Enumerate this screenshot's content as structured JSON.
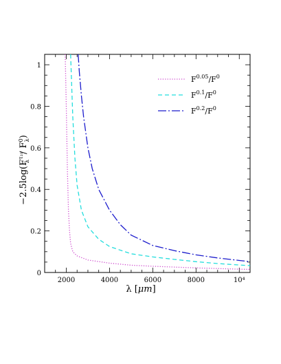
{
  "chart_data": {
    "type": "line",
    "xlabel": "λ [μm]",
    "ylabel": "−2.5log(F^{τ₁₀}_λ / F^0_λ)",
    "xlim": [
      1000,
      10500
    ],
    "ylim": [
      0,
      1.05
    ],
    "x_ticks": [
      {
        "value": 2000,
        "label": "2000"
      },
      {
        "value": 4000,
        "label": "4000"
      },
      {
        "value": 6000,
        "label": "6000"
      },
      {
        "value": 8000,
        "label": "8000"
      },
      {
        "value": 10000,
        "label": "10⁴"
      }
    ],
    "y_ticks": [
      {
        "value": 0,
        "label": "0"
      },
      {
        "value": 0.2,
        "label": "0.2"
      },
      {
        "value": 0.4,
        "label": "0.4"
      },
      {
        "value": 0.6,
        "label": "0.6"
      },
      {
        "value": 0.8,
        "label": "0.8"
      },
      {
        "value": 1.0,
        "label": "1"
      }
    ],
    "legend_position": "top-right",
    "series": [
      {
        "name": "F^0.05/F^0",
        "color": "#cc44cc",
        "style": "dotted",
        "points": [
          [
            1950,
            1.05
          ],
          [
            1980,
            0.9
          ],
          [
            2000,
            0.8
          ],
          [
            2050,
            0.5
          ],
          [
            2100,
            0.3
          ],
          [
            2150,
            0.2
          ],
          [
            2200,
            0.14
          ],
          [
            2300,
            0.1
          ],
          [
            2500,
            0.08
          ],
          [
            3000,
            0.06
          ],
          [
            4000,
            0.045
          ],
          [
            5000,
            0.035
          ],
          [
            6000,
            0.03
          ],
          [
            7000,
            0.026
          ],
          [
            8000,
            0.022
          ],
          [
            9000,
            0.019
          ],
          [
            10000,
            0.016
          ],
          [
            10500,
            0.015
          ]
        ]
      },
      {
        "name": "F^0.1/F^0",
        "color": "#22dddd",
        "style": "dashed",
        "points": [
          [
            2200,
            1.05
          ],
          [
            2300,
            0.75
          ],
          [
            2400,
            0.55
          ],
          [
            2500,
            0.42
          ],
          [
            2700,
            0.3
          ],
          [
            3000,
            0.22
          ],
          [
            3500,
            0.16
          ],
          [
            4000,
            0.125
          ],
          [
            5000,
            0.09
          ],
          [
            6000,
            0.075
          ],
          [
            7000,
            0.063
          ],
          [
            8000,
            0.052
          ],
          [
            9000,
            0.043
          ],
          [
            10000,
            0.036
          ],
          [
            10500,
            0.033
          ]
        ]
      },
      {
        "name": "F^0.2/F^0",
        "color": "#1a1acc",
        "style": "long-dash-dot",
        "points": [
          [
            2550,
            1.05
          ],
          [
            2600,
            0.97
          ],
          [
            2700,
            0.85
          ],
          [
            2800,
            0.75
          ],
          [
            3000,
            0.6
          ],
          [
            3200,
            0.5
          ],
          [
            3500,
            0.4
          ],
          [
            4000,
            0.3
          ],
          [
            4500,
            0.23
          ],
          [
            5000,
            0.18
          ],
          [
            6000,
            0.13
          ],
          [
            7000,
            0.105
          ],
          [
            8000,
            0.085
          ],
          [
            9000,
            0.07
          ],
          [
            10000,
            0.058
          ],
          [
            10500,
            0.052
          ]
        ]
      }
    ]
  },
  "legend": {
    "items": [
      {
        "base": "F",
        "sup": "0.05",
        "mid": "/F",
        "sup2": "0"
      },
      {
        "base": "F",
        "sup": "0.1",
        "mid": "/F",
        "sup2": "0"
      },
      {
        "base": "F",
        "sup": "0.2",
        "mid": "/F",
        "sup2": "0"
      }
    ]
  },
  "axes": {
    "xlabel_main": "λ [",
    "xlabel_unit": "μm",
    "xlabel_close": "]",
    "ylabel_prefix": "−2.5log(F",
    "ylabel_sup": "τ₁₀",
    "ylabel_sub": "λ",
    "ylabel_mid": "/ F",
    "ylabel_sup2": "0",
    "ylabel_sub2": "λ",
    "ylabel_close": ")"
  }
}
